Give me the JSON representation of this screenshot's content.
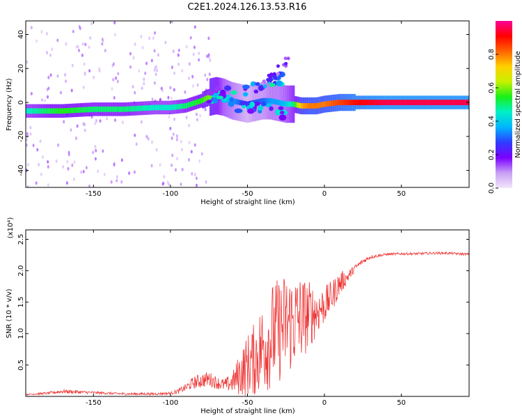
{
  "chart_data": [
    {
      "type": "heatmap",
      "title": "C2E1.2024.126.13.53.R16",
      "xlabel": "Height of straight line (km)",
      "ylabel": "Frequency (Hz)",
      "xlim": [
        -194,
        94
      ],
      "ylim": [
        -50,
        48
      ],
      "xticks": [
        -150,
        -100,
        -50,
        0,
        50
      ],
      "yticks": [
        -40,
        -20,
        0,
        20,
        40
      ],
      "colorbar": {
        "label": "Normalized spectral amplitude",
        "range": [
          0,
          1
        ],
        "ticks": [
          0.0,
          0.2,
          0.4,
          0.6,
          0.8
        ],
        "colormap": [
          "#f2e6fa",
          "#c9a0f5",
          "#7b00ff",
          "#2f3cff",
          "#00b4ff",
          "#00f0c8",
          "#19f019",
          "#c8f000",
          "#ffd000",
          "#ff6400",
          "#ff0000",
          "#ff0096"
        ]
      },
      "ridge": {
        "x": [
          -194,
          -170,
          -150,
          -130,
          -110,
          -100,
          -90,
          -80,
          -75,
          -70,
          -65,
          -60,
          -55,
          -50,
          -45,
          -40,
          -35,
          -30,
          -25,
          -20,
          -15,
          -10,
          -5,
          0,
          10,
          20,
          40,
          60,
          80,
          94
        ],
        "frequency": [
          -5,
          -5,
          -4,
          -4,
          -3,
          -3,
          -2,
          1,
          3,
          4,
          3,
          1,
          0,
          -1,
          0,
          1,
          1,
          0,
          -1,
          -1,
          -2,
          -2,
          -2,
          -1,
          0,
          0,
          0,
          0,
          0,
          0
        ],
        "amplitude": [
          0.45,
          0.55,
          0.5,
          0.5,
          0.45,
          0.45,
          0.5,
          0.55,
          0.6,
          0.55,
          0.4,
          0.35,
          0.3,
          0.25,
          0.3,
          0.3,
          0.35,
          0.35,
          0.4,
          0.5,
          0.75,
          0.8,
          0.8,
          0.8,
          0.85,
          0.9,
          0.95,
          0.95,
          0.95,
          0.95
        ]
      }
    },
    {
      "type": "line",
      "xlabel": "Height of straight line (km)",
      "ylabel": "SNR (10 * v/v)",
      "yscale_note": "(x10⁴)",
      "xlim": [
        -194,
        94
      ],
      "ylim": [
        0,
        2.65
      ],
      "xticks": [
        -150,
        -100,
        -50,
        0,
        50
      ],
      "yticks": [
        0.5,
        1.0,
        1.5,
        2.0,
        2.5
      ],
      "color": "#ee3333",
      "series": [
        {
          "x": [
            -194,
            -180,
            -170,
            -160,
            -150,
            -140,
            -130,
            -120,
            -110,
            -100,
            -95,
            -90,
            -85,
            -80,
            -75,
            -70,
            -65,
            -60,
            -55,
            -50,
            -45,
            -40,
            -35,
            -30,
            -25,
            -20,
            -15,
            -10,
            -5,
            0,
            5,
            10,
            15,
            20,
            25,
            30,
            40,
            50,
            60,
            70,
            80,
            94
          ],
          "y": [
            0.03,
            0.05,
            0.08,
            0.07,
            0.06,
            0.05,
            0.04,
            0.04,
            0.04,
            0.05,
            0.08,
            0.14,
            0.22,
            0.25,
            0.28,
            0.22,
            0.18,
            0.22,
            0.35,
            0.5,
            0.6,
            0.8,
            0.95,
            1.05,
            1.15,
            1.2,
            1.25,
            1.3,
            1.35,
            1.45,
            1.6,
            1.8,
            1.9,
            2.05,
            2.15,
            2.22,
            2.26,
            2.27,
            2.27,
            2.28,
            2.28,
            2.26
          ],
          "noise": [
            0.01,
            0.02,
            0.03,
            0.03,
            0.02,
            0.02,
            0.02,
            0.02,
            0.02,
            0.02,
            0.04,
            0.06,
            0.1,
            0.12,
            0.12,
            0.1,
            0.1,
            0.15,
            0.35,
            0.5,
            0.6,
            0.75,
            0.85,
            0.85,
            0.85,
            0.8,
            0.7,
            0.55,
            0.4,
            0.3,
            0.25,
            0.2,
            0.1,
            0.05,
            0.04,
            0.03,
            0.02,
            0.02,
            0.02,
            0.02,
            0.02,
            0.02
          ]
        }
      ]
    }
  ]
}
